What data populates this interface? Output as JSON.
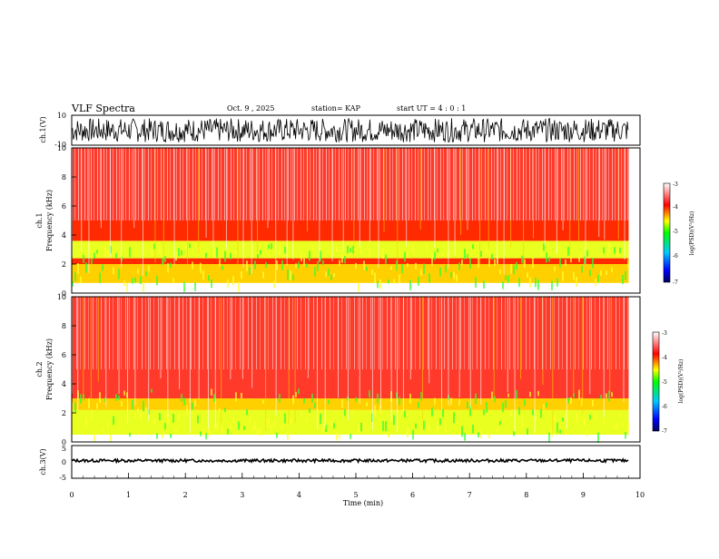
{
  "header": {
    "title": "VLF Spectra",
    "date": "Oct. 9 , 2025",
    "station": "station= KAP",
    "start_ut": "start  UT =  4 : 0  : 1"
  },
  "chart_data": [
    {
      "id": "ch1_waveform",
      "type": "line",
      "ylabel": "ch.1(V)",
      "ylim": [
        -10,
        10
      ],
      "ytick_labels": [
        "10",
        "-10"
      ],
      "amplitude_description": "dense noise spanning roughly -8 to 8 V",
      "xlim": [
        0,
        10
      ]
    },
    {
      "id": "ch1_spectrogram",
      "type": "heatmap",
      "ylabel": "ch.1",
      "ylabel2": "Frequency  (kHz)",
      "ylim": [
        0,
        10
      ],
      "ytick_labels": [
        "0",
        "2",
        "4",
        "6",
        "8",
        "10"
      ],
      "colorbar_label": "log(PSD)(V²/Hz)",
      "colorbar_ticks": [
        "-3",
        "-4",
        "-5",
        "-6",
        "-7"
      ],
      "colorbar_range": [
        -7,
        -3
      ],
      "bands_khz": [
        {
          "from": 0.7,
          "to": 2.0,
          "level": -4.6
        },
        {
          "from": 2.0,
          "to": 2.4,
          "level": -4.0
        },
        {
          "from": 2.4,
          "to": 3.6,
          "level": -4.8
        },
        {
          "from": 3.6,
          "to": 5.0,
          "level": -4.1
        },
        {
          "from": 5.0,
          "to": 10.0,
          "level": -3.6
        }
      ]
    },
    {
      "id": "ch2_spectrogram",
      "type": "heatmap",
      "ylabel": "ch.2",
      "ylabel2": "Frequency  (kHz)",
      "ylim": [
        0,
        10
      ],
      "ytick_labels": [
        "0",
        "2",
        "4",
        "6",
        "8",
        "10"
      ],
      "colorbar_label": "log(PSD)(V²/Hz)",
      "colorbar_ticks": [
        "-3",
        "-4",
        "-5",
        "-6",
        "-7"
      ],
      "colorbar_range": [
        -7,
        -3
      ],
      "bands_khz": [
        {
          "from": 0.5,
          "to": 2.2,
          "level": -4.9
        },
        {
          "from": 2.2,
          "to": 3.0,
          "level": -4.3
        },
        {
          "from": 3.0,
          "to": 10.0,
          "level": -3.7
        }
      ]
    },
    {
      "id": "ch3_waveform",
      "type": "line",
      "ylabel": "ch.3(V)",
      "ylim": [
        -5,
        5
      ],
      "ytick_labels": [
        "5",
        "0",
        "-5"
      ],
      "level_description": "nearly constant around 0.5 V",
      "xlim": [
        0,
        10
      ],
      "xlabel": "Time  (min)",
      "xtick_labels": [
        "0",
        "1",
        "2",
        "3",
        "4",
        "5",
        "6",
        "7",
        "8",
        "9",
        "10"
      ],
      "data_end_min": 9.8
    }
  ]
}
